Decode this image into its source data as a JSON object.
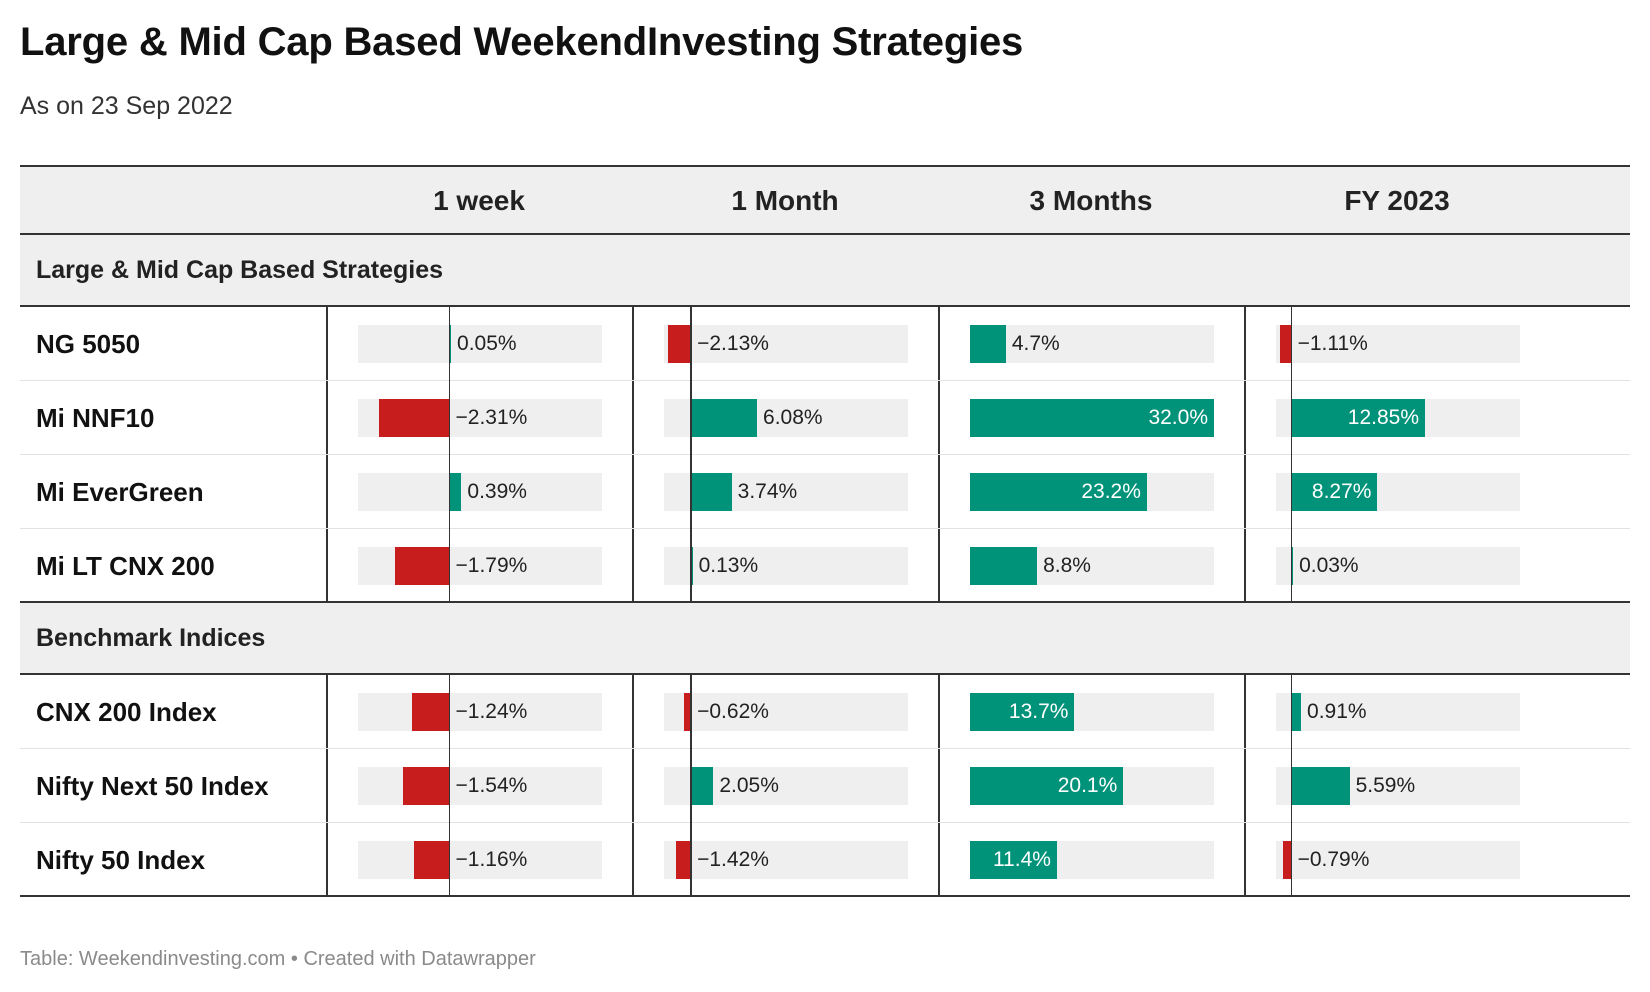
{
  "title": "Large & Mid Cap Based WeekendInvesting Strategies",
  "subtitle": "As on 23 Sep 2022",
  "footer": "Table: Weekendinvesting.com • Created with Datawrapper",
  "colors": {
    "positive": "#00937a",
    "negative": "#c71e1d",
    "cell_bg": "#efefef"
  },
  "chart_data": {
    "type": "table",
    "columns": [
      "1 week",
      "1 Month",
      "3 Months",
      "FY 2023"
    ],
    "axis_ranges": [
      [
        -3.0,
        5.0
      ],
      [
        -2.5,
        20.0
      ],
      [
        0,
        32.0
      ],
      [
        -1.5,
        22.0
      ]
    ],
    "groups": [
      {
        "label": "Large & Mid Cap Based Strategies",
        "rows": [
          {
            "name": "NG 5050",
            "values": [
              0.05,
              -2.13,
              4.7,
              -1.11
            ],
            "labels": [
              "0.05%",
              "−2.13%",
              "4.7%",
              "−1.11%"
            ]
          },
          {
            "name": "Mi NNF10",
            "values": [
              -2.31,
              6.08,
              32.0,
              12.85
            ],
            "labels": [
              "−2.31%",
              "6.08%",
              "32.0%",
              "12.85%"
            ]
          },
          {
            "name": "Mi EverGreen",
            "values": [
              0.39,
              3.74,
              23.2,
              8.27
            ],
            "labels": [
              "0.39%",
              "3.74%",
              "23.2%",
              "8.27%"
            ]
          },
          {
            "name": "Mi LT CNX 200",
            "values": [
              -1.79,
              0.13,
              8.8,
              0.03
            ],
            "labels": [
              "−1.79%",
              "0.13%",
              "8.8%",
              "0.03%"
            ]
          }
        ]
      },
      {
        "label": "Benchmark Indices",
        "rows": [
          {
            "name": "CNX 200 Index",
            "values": [
              -1.24,
              -0.62,
              13.7,
              0.91
            ],
            "labels": [
              "−1.24%",
              "−0.62%",
              "13.7%",
              "0.91%"
            ]
          },
          {
            "name": "Nifty Next 50 Index",
            "values": [
              -1.54,
              2.05,
              20.1,
              5.59
            ],
            "labels": [
              "−1.54%",
              "2.05%",
              "20.1%",
              "5.59%"
            ]
          },
          {
            "name": "Nifty 50 Index",
            "values": [
              -1.16,
              -1.42,
              11.4,
              -0.79
            ],
            "labels": [
              "−1.16%",
              "−1.42%",
              "11.4%",
              "−0.79%"
            ]
          }
        ]
      }
    ]
  }
}
